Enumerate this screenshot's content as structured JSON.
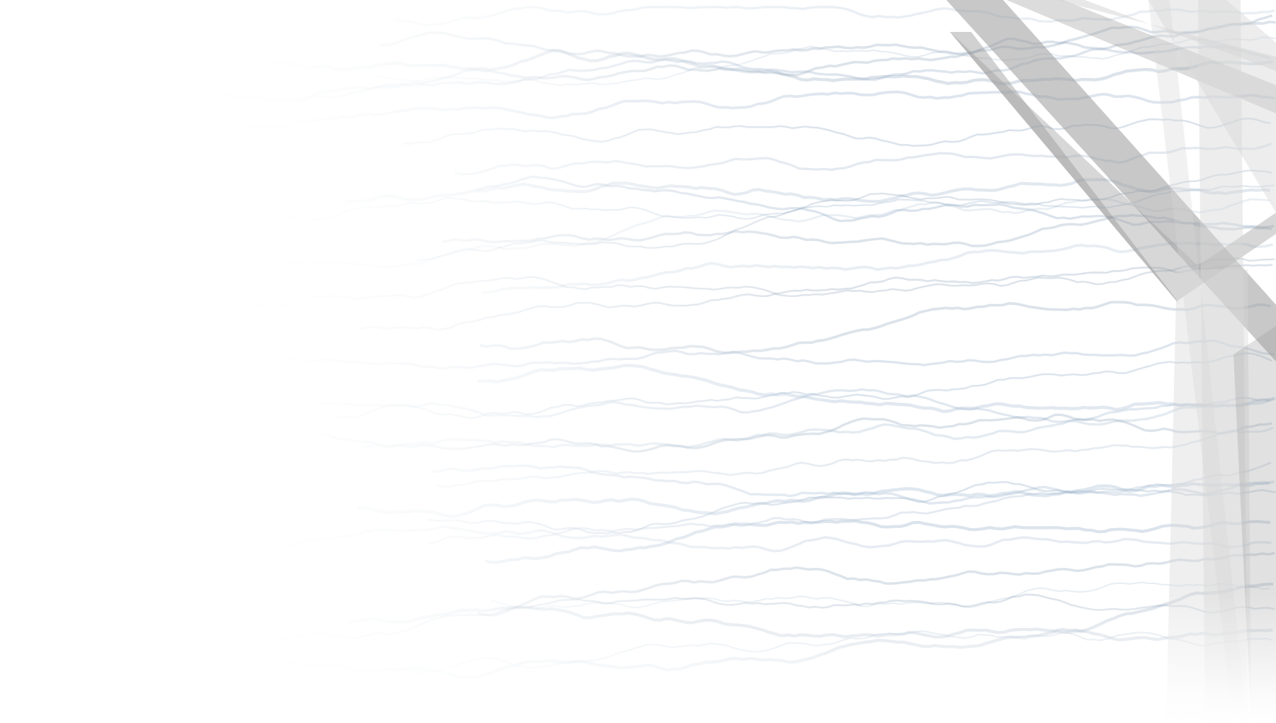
{
  "background": {
    "base_color": "#ffffff",
    "wave_color": "#9db4cc",
    "wave_dark_color": "#5f7f9e",
    "shard_color": "#9a9a9a",
    "shard_light_color": "#d6d6d6",
    "decorative_elements": [
      "noise-wave-lines",
      "gray-shards"
    ]
  }
}
